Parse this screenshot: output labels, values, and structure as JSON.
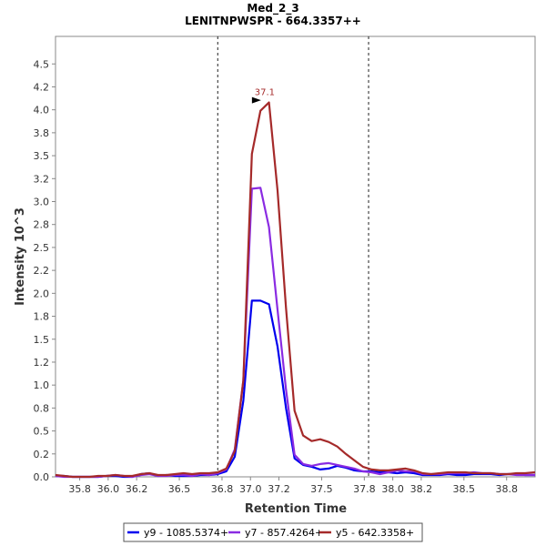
{
  "chart_data": {
    "type": "line",
    "title": "Med_2_3",
    "subtitle": "LENITNPWSPR - 664.3357++",
    "xlabel": "Retention Time",
    "ylabel": "Intensity 10^3",
    "xlim": [
      35.63,
      39.0
    ],
    "ylim": [
      0,
      4.8
    ],
    "xticks": [
      "35.8",
      "36.0",
      "36.2",
      "36.5",
      "36.8",
      "37.0",
      "37.2",
      "37.5",
      "37.8",
      "38.0",
      "38.2",
      "38.5",
      "38.8"
    ],
    "xtick_values": [
      35.8,
      36.0,
      36.2,
      36.5,
      36.8,
      37.0,
      37.2,
      37.5,
      37.8,
      38.0,
      38.2,
      38.5,
      38.8
    ],
    "yticks": [
      "0.0",
      "0.2",
      "0.5",
      "0.8",
      "1.0",
      "1.2",
      "1.5",
      "1.8",
      "2.0",
      "2.2",
      "2.5",
      "2.8",
      "3.0",
      "3.2",
      "3.5",
      "3.8",
      "4.0",
      "4.2",
      "4.5"
    ],
    "ytick_values": [
      0.0,
      0.25,
      0.5,
      0.75,
      1.0,
      1.25,
      1.5,
      1.75,
      2.0,
      2.25,
      2.5,
      2.75,
      3.0,
      3.25,
      3.5,
      3.75,
      4.0,
      4.25,
      4.5
    ],
    "integration_bounds": [
      36.77,
      37.83
    ],
    "peak_label": {
      "text": "37.1",
      "x": 37.1,
      "y": 4.08
    },
    "x": [
      35.63,
      35.69,
      35.75,
      35.81,
      35.87,
      35.93,
      35.99,
      36.05,
      36.11,
      36.17,
      36.23,
      36.29,
      36.35,
      36.41,
      36.47,
      36.53,
      36.59,
      36.65,
      36.71,
      36.77,
      36.83,
      36.89,
      36.95,
      37.01,
      37.07,
      37.13,
      37.19,
      37.25,
      37.31,
      37.37,
      37.43,
      37.49,
      37.55,
      37.61,
      37.67,
      37.73,
      37.79,
      37.85,
      37.91,
      37.97,
      38.03,
      38.09,
      38.15,
      38.21,
      38.27,
      38.33,
      38.39,
      38.45,
      38.51,
      38.57,
      38.63,
      38.69,
      38.75,
      38.81,
      38.87,
      38.93,
      39.0
    ],
    "series": [
      {
        "name": "y9 - 1085.5374+",
        "color": "#0000ee",
        "values": [
          0.01,
          0.01,
          0.0,
          0.0,
          0.0,
          0.0,
          0.01,
          0.01,
          0.0,
          0.0,
          0.03,
          0.04,
          0.01,
          0.02,
          0.01,
          0.01,
          0.01,
          0.02,
          0.02,
          0.03,
          0.06,
          0.22,
          0.83,
          1.92,
          1.92,
          1.88,
          1.42,
          0.75,
          0.2,
          0.13,
          0.11,
          0.08,
          0.09,
          0.12,
          0.1,
          0.07,
          0.06,
          0.06,
          0.05,
          0.05,
          0.04,
          0.05,
          0.04,
          0.02,
          0.02,
          0.02,
          0.03,
          0.02,
          0.02,
          0.03,
          0.03,
          0.03,
          0.02,
          0.03,
          0.03,
          0.02,
          0.02
        ]
      },
      {
        "name": "y7 - 857.4264+",
        "color": "#8a2be2",
        "values": [
          0.01,
          0.0,
          0.0,
          0.0,
          0.0,
          0.0,
          0.01,
          0.02,
          0.01,
          0.0,
          0.02,
          0.03,
          0.01,
          0.01,
          0.02,
          0.02,
          0.01,
          0.03,
          0.02,
          0.04,
          0.08,
          0.3,
          1.05,
          3.14,
          3.15,
          2.72,
          1.82,
          0.95,
          0.24,
          0.14,
          0.12,
          0.14,
          0.15,
          0.13,
          0.11,
          0.09,
          0.06,
          0.05,
          0.03,
          0.05,
          0.07,
          0.06,
          0.06,
          0.03,
          0.03,
          0.03,
          0.04,
          0.04,
          0.04,
          0.05,
          0.04,
          0.04,
          0.03,
          0.03,
          0.02,
          0.02,
          0.02
        ]
      },
      {
        "name": "y5 - 642.3358+",
        "color": "#a52a2a",
        "values": [
          0.02,
          0.01,
          0.0,
          0.0,
          0.0,
          0.01,
          0.01,
          0.02,
          0.01,
          0.01,
          0.03,
          0.04,
          0.02,
          0.02,
          0.03,
          0.04,
          0.03,
          0.04,
          0.04,
          0.05,
          0.09,
          0.28,
          1.05,
          3.52,
          3.99,
          4.08,
          3.12,
          1.84,
          0.72,
          0.45,
          0.39,
          0.41,
          0.38,
          0.33,
          0.25,
          0.18,
          0.11,
          0.08,
          0.07,
          0.07,
          0.08,
          0.09,
          0.07,
          0.04,
          0.03,
          0.04,
          0.05,
          0.05,
          0.05,
          0.04,
          0.04,
          0.04,
          0.03,
          0.03,
          0.04,
          0.04,
          0.05
        ]
      }
    ],
    "legend_position": "bottom"
  }
}
